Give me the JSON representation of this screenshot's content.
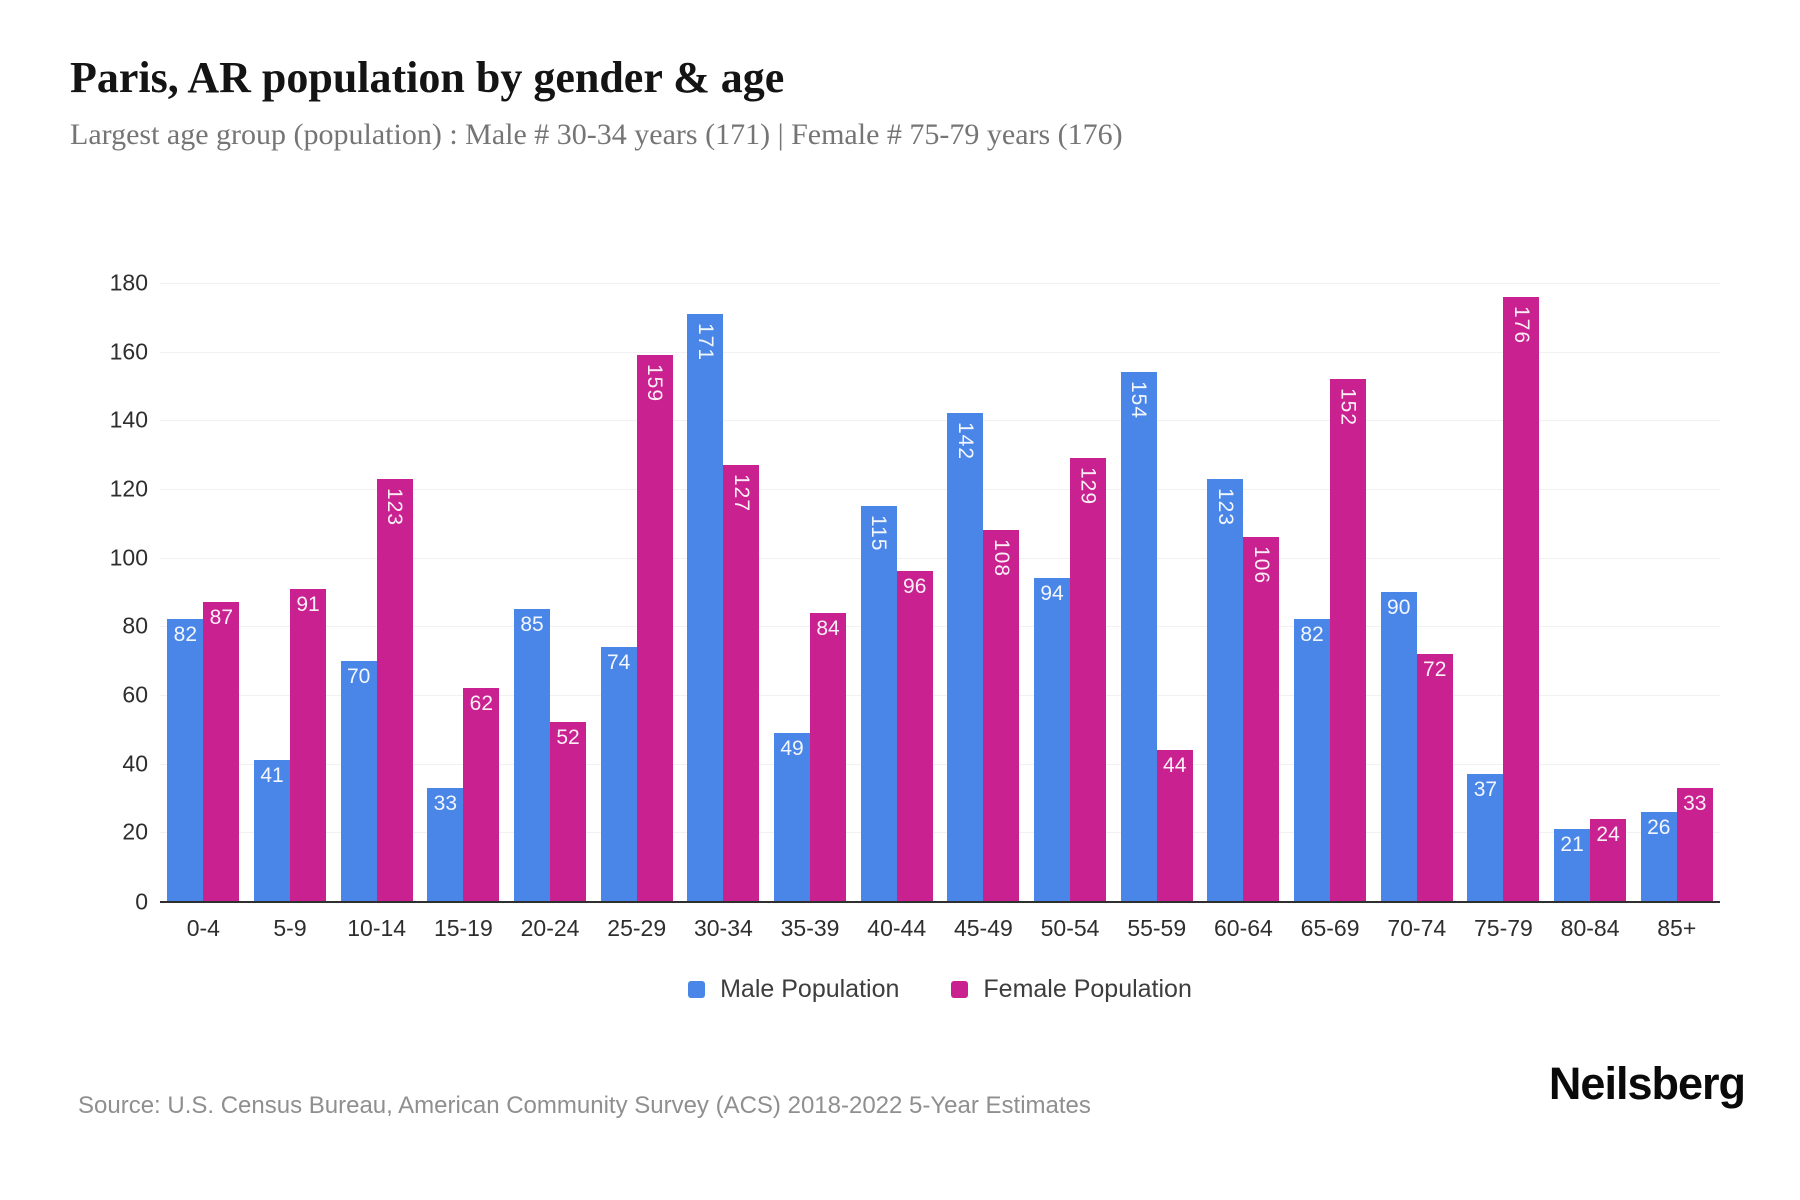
{
  "header": {
    "title": "Paris, AR population by gender & age",
    "subtitle": "Largest age group (population) : Male # 30-34 years (171) | Female # 75-79 years (176)"
  },
  "chart_data": {
    "type": "bar",
    "title": "Paris, AR population by gender & age",
    "categories": [
      "0-4",
      "5-9",
      "10-14",
      "15-19",
      "20-24",
      "25-29",
      "30-34",
      "35-39",
      "40-44",
      "45-49",
      "50-54",
      "55-59",
      "60-64",
      "65-69",
      "70-74",
      "75-79",
      "80-84",
      "85+"
    ],
    "series": [
      {
        "name": "Male Population",
        "color": "#4a86e8",
        "values": [
          82,
          41,
          70,
          33,
          85,
          74,
          171,
          49,
          115,
          142,
          94,
          154,
          123,
          82,
          90,
          37,
          21,
          26
        ]
      },
      {
        "name": "Female Population",
        "color": "#c92190",
        "values": [
          87,
          91,
          123,
          62,
          52,
          159,
          127,
          84,
          96,
          108,
          129,
          44,
          106,
          152,
          72,
          176,
          24,
          33
        ]
      }
    ],
    "xlabel": "",
    "ylabel": "",
    "ylim": [
      0,
      180
    ],
    "ytick_step": 20,
    "grid": "horizontal-only",
    "legend_position": "bottom",
    "value_labels": "inside-top, white, rotated 90deg when 3 digits"
  },
  "footer": {
    "source": "Source: U.S. Census Bureau, American Community Survey (ACS) 2018-2022 5-Year Estimates",
    "brand": "Neilsberg"
  }
}
